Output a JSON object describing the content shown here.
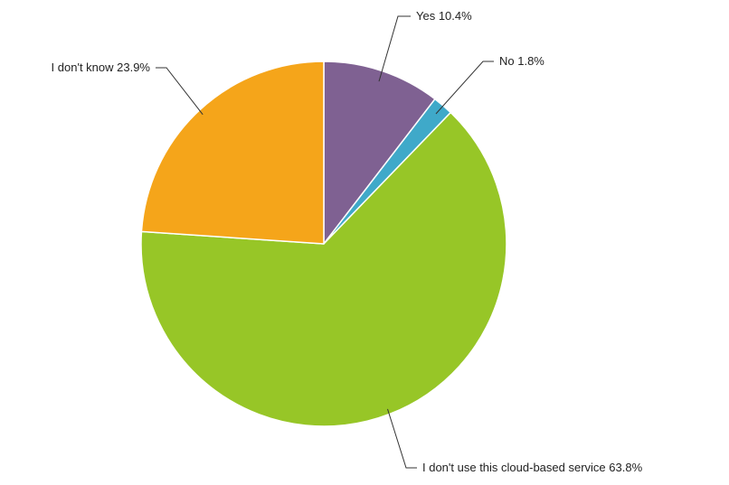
{
  "chart_data": {
    "type": "pie",
    "start_angle_deg": 0,
    "direction": "clockwise",
    "slices": [
      {
        "label": "Yes",
        "value": 10.4,
        "display": "Yes 10.4%",
        "color": "#7F6192"
      },
      {
        "label": "No",
        "value": 1.8,
        "display": "No 1.8%",
        "color": "#3FA9C9"
      },
      {
        "label": "I don't use this cloud-based service",
        "value": 63.8,
        "display": "I don't use this cloud-based service 63.8%",
        "color": "#97C627"
      },
      {
        "label": "I don't know",
        "value": 23.9,
        "display": "I don't know 23.9%",
        "color": "#F5A51A"
      }
    ],
    "unit": "%",
    "legend": "none",
    "slice_border_color": "#FFFFFF"
  }
}
